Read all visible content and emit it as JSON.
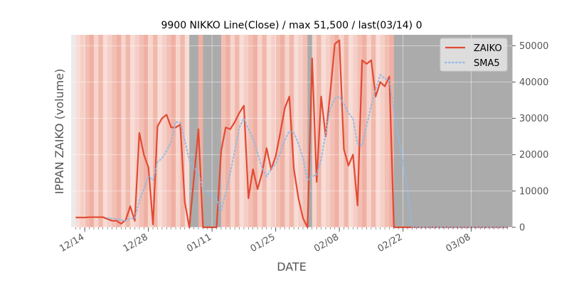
{
  "chart_data": {
    "type": "line",
    "title": "9900 NIKKO Line(Close) / max 51,500 / last(03/14) 0",
    "xlabel": "DATE",
    "ylabel": "IPPAN ZAIKO (volume)",
    "ylim": [
      0,
      53000
    ],
    "yticks": [
      0,
      10000,
      20000,
      30000,
      40000,
      50000
    ],
    "ytick_labels": [
      "0",
      "10000",
      "20000",
      "30000",
      "40000",
      "50000"
    ],
    "xlim": [
      "2023-12-11",
      "2024-03-17"
    ],
    "xticks": [
      "2023-12-14",
      "2023-12-28",
      "2024-01-11",
      "2024-01-25",
      "2024-02-08",
      "2024-02-22",
      "2024-03-08"
    ],
    "xtick_labels": [
      "12/14",
      "12/28",
      "01/11",
      "01/25",
      "02/08",
      "02/22",
      "03/08"
    ],
    "legend_position": "top-right",
    "background_shading": "daily vertical bands in shades of pink/red, gray where data is zero",
    "grid": true,
    "series": [
      {
        "name": "ZAIKO",
        "color": "#E24A33",
        "style": "solid",
        "points": [
          [
            "2023-12-12",
            2700
          ],
          [
            "2023-12-13",
            2700
          ],
          [
            "2023-12-14",
            2700
          ],
          [
            "2023-12-15",
            2800
          ],
          [
            "2023-12-18",
            2800
          ],
          [
            "2023-12-19",
            2300
          ],
          [
            "2023-12-20",
            1800
          ],
          [
            "2023-12-21",
            1800
          ],
          [
            "2023-12-22",
            1000
          ],
          [
            "2023-12-23",
            2000
          ],
          [
            "2023-12-24",
            5800
          ],
          [
            "2023-12-25",
            1800
          ],
          [
            "2023-12-26",
            26000
          ],
          [
            "2023-12-27",
            20000
          ],
          [
            "2023-12-28",
            16500
          ],
          [
            "2023-12-29",
            800
          ],
          [
            "2023-12-30",
            27800
          ],
          [
            "2023-12-31",
            30000
          ],
          [
            "2024-01-01",
            31000
          ],
          [
            "2024-01-02",
            27500
          ],
          [
            "2024-01-03",
            27500
          ],
          [
            "2024-01-04",
            28300
          ],
          [
            "2024-01-05",
            7000
          ],
          [
            "2024-01-06",
            0
          ],
          [
            "2024-01-08",
            27000
          ],
          [
            "2024-01-09",
            0
          ],
          [
            "2024-01-10",
            0
          ],
          [
            "2024-01-12",
            0
          ],
          [
            "2024-01-13",
            21000
          ],
          [
            "2024-01-14",
            27500
          ],
          [
            "2024-01-15",
            27000
          ],
          [
            "2024-01-16",
            29000
          ],
          [
            "2024-01-17",
            31500
          ],
          [
            "2024-01-18",
            33500
          ],
          [
            "2024-01-19",
            8000
          ],
          [
            "2024-01-20",
            16000
          ],
          [
            "2024-01-21",
            10500
          ],
          [
            "2024-01-22",
            15000
          ],
          [
            "2024-01-23",
            21800
          ],
          [
            "2024-01-24",
            16000
          ],
          [
            "2024-01-25",
            19500
          ],
          [
            "2024-01-26",
            26000
          ],
          [
            "2024-01-27",
            32800
          ],
          [
            "2024-01-28",
            36000
          ],
          [
            "2024-01-29",
            16000
          ],
          [
            "2024-01-30",
            8000
          ],
          [
            "2024-01-31",
            2500
          ],
          [
            "2024-02-01",
            0
          ],
          [
            "2024-02-02",
            46500
          ],
          [
            "2024-02-03",
            12500
          ],
          [
            "2024-02-04",
            36000
          ],
          [
            "2024-02-05",
            25000
          ],
          [
            "2024-02-06",
            37000
          ],
          [
            "2024-02-07",
            50500
          ],
          [
            "2024-02-08",
            51500
          ],
          [
            "2024-02-09",
            21500
          ],
          [
            "2024-02-10",
            17000
          ],
          [
            "2024-02-11",
            20000
          ],
          [
            "2024-02-12",
            6000
          ],
          [
            "2024-02-13",
            46000
          ],
          [
            "2024-02-14",
            45000
          ],
          [
            "2024-02-15",
            46000
          ],
          [
            "2024-02-16",
            36000
          ],
          [
            "2024-02-17",
            40000
          ],
          [
            "2024-02-18",
            38800
          ],
          [
            "2024-02-19",
            41500
          ],
          [
            "2024-02-20",
            0
          ],
          [
            "2024-02-22",
            0
          ],
          [
            "2024-03-01",
            0
          ],
          [
            "2024-03-08",
            0
          ],
          [
            "2024-03-16",
            0
          ]
        ]
      },
      {
        "name": "SMA5",
        "color": "#8EBAE5",
        "style": "dotted",
        "points": [
          [
            "2023-12-19",
            2600
          ],
          [
            "2023-12-20",
            2400
          ],
          [
            "2023-12-21",
            2300
          ],
          [
            "2023-12-22",
            2000
          ],
          [
            "2023-12-23",
            1800
          ],
          [
            "2023-12-24",
            2400
          ],
          [
            "2023-12-25",
            2500
          ],
          [
            "2023-12-26",
            7300
          ],
          [
            "2023-12-27",
            10500
          ],
          [
            "2023-12-28",
            14000
          ],
          [
            "2023-12-29",
            13000
          ],
          [
            "2023-12-30",
            18000
          ],
          [
            "2023-12-31",
            19000
          ],
          [
            "2024-01-01",
            21000
          ],
          [
            "2024-01-02",
            23500
          ],
          [
            "2024-01-03",
            29000
          ],
          [
            "2024-01-04",
            28800
          ],
          [
            "2024-01-05",
            24000
          ],
          [
            "2024-01-06",
            18500
          ],
          [
            "2024-01-07",
            16500
          ],
          [
            "2024-01-08",
            15000
          ],
          [
            "2024-01-09",
            10000
          ],
          [
            "2024-01-10",
            9500
          ],
          [
            "2024-01-11",
            8800
          ],
          [
            "2024-01-12",
            7800
          ],
          [
            "2024-01-13",
            4500
          ],
          [
            "2024-01-14",
            9500
          ],
          [
            "2024-01-15",
            15000
          ],
          [
            "2024-01-16",
            21000
          ],
          [
            "2024-01-17",
            27500
          ],
          [
            "2024-01-18",
            30000
          ],
          [
            "2024-01-19",
            27000
          ],
          [
            "2024-01-20",
            24500
          ],
          [
            "2024-01-21",
            20500
          ],
          [
            "2024-01-22",
            16500
          ],
          [
            "2024-01-23",
            14000
          ],
          [
            "2024-01-24",
            16000
          ],
          [
            "2024-01-25",
            17500
          ],
          [
            "2024-01-26",
            20500
          ],
          [
            "2024-01-27",
            24000
          ],
          [
            "2024-01-28",
            26500
          ],
          [
            "2024-01-29",
            26000
          ],
          [
            "2024-01-30",
            23000
          ],
          [
            "2024-01-31",
            19000
          ],
          [
            "2024-02-01",
            13000
          ],
          [
            "2024-02-02",
            14000
          ],
          [
            "2024-02-03",
            14500
          ],
          [
            "2024-02-04",
            18500
          ],
          [
            "2024-02-05",
            26000
          ],
          [
            "2024-02-06",
            32500
          ],
          [
            "2024-02-07",
            35500
          ],
          [
            "2024-02-08",
            36000
          ],
          [
            "2024-02-09",
            34000
          ],
          [
            "2024-02-10",
            31500
          ],
          [
            "2024-02-11",
            30000
          ],
          [
            "2024-02-12",
            23000
          ],
          [
            "2024-02-13",
            22500
          ],
          [
            "2024-02-14",
            28000
          ],
          [
            "2024-02-15",
            33500
          ],
          [
            "2024-02-16",
            38000
          ],
          [
            "2024-02-17",
            42000
          ],
          [
            "2024-02-18",
            41000
          ],
          [
            "2024-02-19",
            40500
          ],
          [
            "2024-02-20",
            32000
          ],
          [
            "2024-02-21",
            25000
          ],
          [
            "2024-02-22",
            18000
          ],
          [
            "2024-02-23",
            10000
          ],
          [
            "2024-02-24",
            0
          ],
          [
            "2024-03-01",
            0
          ],
          [
            "2024-03-08",
            0
          ],
          [
            "2024-03-16",
            0
          ]
        ]
      }
    ]
  }
}
